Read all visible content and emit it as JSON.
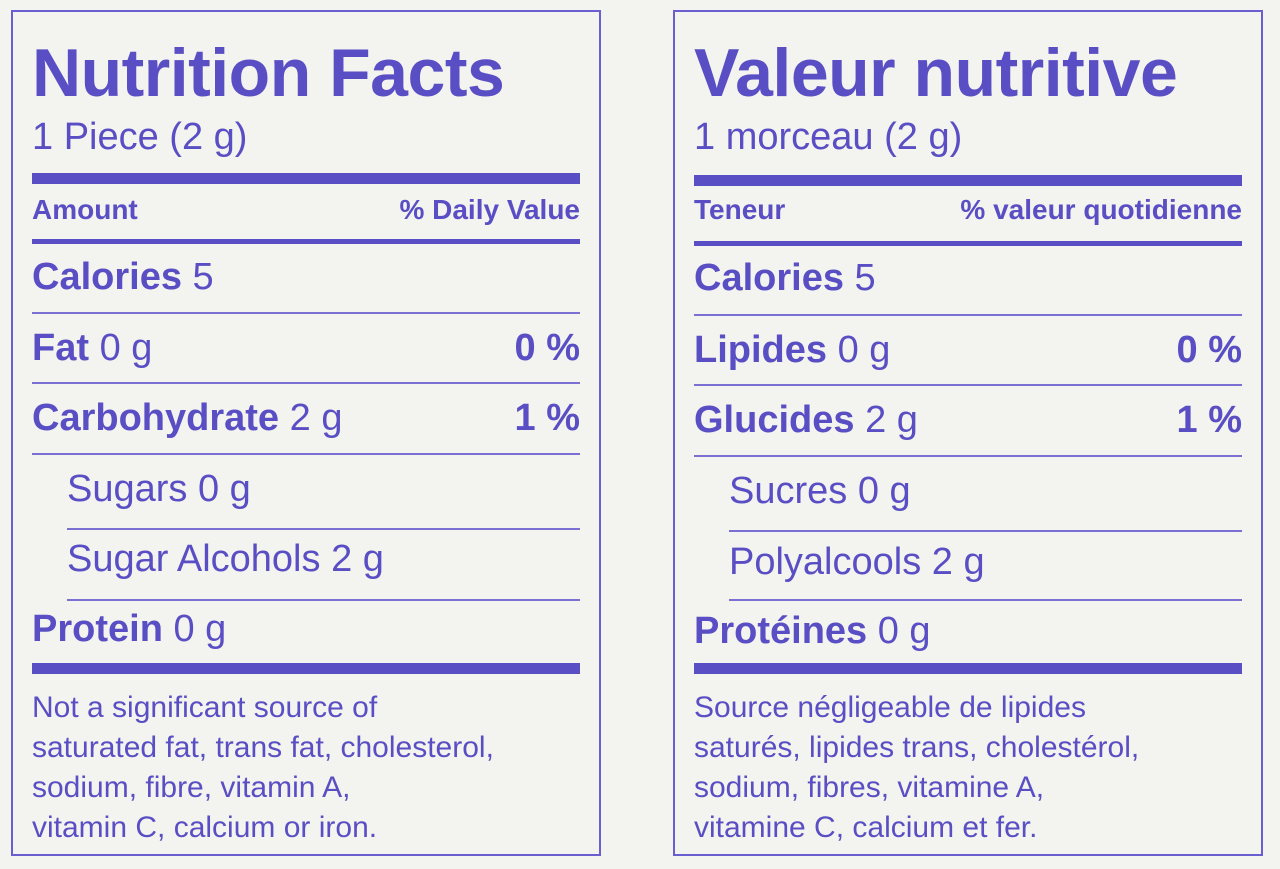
{
  "colors": {
    "ink": "#5a4ec4",
    "background": "#f3f3ef"
  },
  "english": {
    "title": "Nutrition Facts",
    "serving": "1 Piece (2 g)",
    "header_left": "Amount",
    "header_right": "% Daily Value",
    "rows": [
      {
        "label": "Calories",
        "value": "5",
        "dv": ""
      },
      {
        "label": "Fat",
        "value": "0 g",
        "dv": "0 %"
      },
      {
        "label": "Carbohydrate",
        "value": "2 g",
        "dv": "1 %"
      },
      {
        "label": "Sugars",
        "value": "0 g",
        "dv": ""
      },
      {
        "label": "Sugar Alcohols",
        "value": "2 g",
        "dv": ""
      },
      {
        "label": "Protein",
        "value": "0 g",
        "dv": ""
      }
    ],
    "footnote": [
      "Not a significant source of",
      "saturated fat, trans fat, cholesterol,",
      "sodium, fibre, vitamin A,",
      "vitamin C, calcium or iron."
    ]
  },
  "french": {
    "title": "Valeur nutritive",
    "serving": "1 morceau (2 g)",
    "header_left": "Teneur",
    "header_right": "% valeur quotidienne",
    "rows": [
      {
        "label": "Calories",
        "value": "5",
        "dv": ""
      },
      {
        "label": "Lipides",
        "value": "0 g",
        "dv": "0 %"
      },
      {
        "label": "Glucides",
        "value": "2 g",
        "dv": "1 %"
      },
      {
        "label": "Sucres",
        "value": "0 g",
        "dv": ""
      },
      {
        "label": "Polyalcools",
        "value": "2 g",
        "dv": ""
      },
      {
        "label": "Protéines",
        "value": "0 g",
        "dv": ""
      }
    ],
    "footnote": [
      "Source négligeable de lipides",
      "saturés, lipides trans, cholestérol,",
      "sodium, fibres, vitamine A,",
      "vitamine C, calcium et fer."
    ]
  }
}
